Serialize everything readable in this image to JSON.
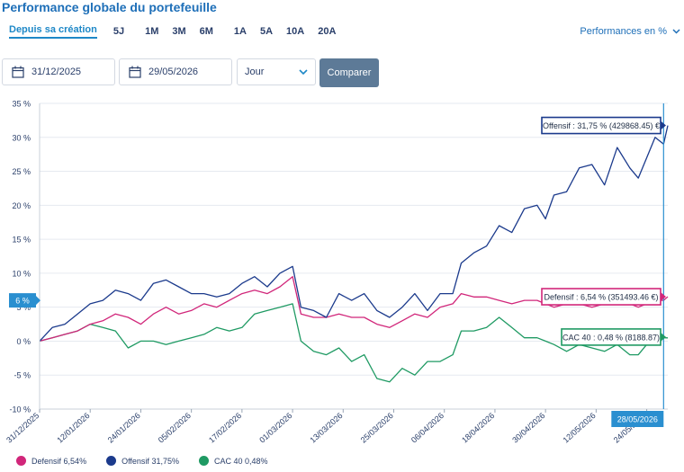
{
  "header": {
    "title": "Performance globale du portefeuille",
    "perf_mode": "Performances en %"
  },
  "periods": [
    "Depuis sa création",
    "5J",
    "1M",
    "3M",
    "6M",
    "1A",
    "5A",
    "10A",
    "20A"
  ],
  "filters": {
    "start_date": "31/12/2025",
    "end_date": "29/05/2026",
    "frequency": "Jour",
    "compare_label": "Comparer"
  },
  "colors": {
    "offensif": "#1b3a8c",
    "defensif": "#d1267a",
    "cac40": "#1f9a63",
    "accent": "#2a8fd0",
    "button": "#5d7a97"
  },
  "chart_data": {
    "type": "line",
    "title": "",
    "xlabel": "",
    "ylabel": "",
    "ylim": [
      -10,
      35
    ],
    "y_ticks": [
      "-10 %",
      "-5 %",
      "0 %",
      "5 %",
      "10 %",
      "15 %",
      "20 %",
      "25 %",
      "30 %",
      "35 %"
    ],
    "x_ticks": [
      "31/12/2025",
      "12/01/2026",
      "24/01/2026",
      "05/02/2026",
      "17/02/2026",
      "01/03/2026",
      "13/03/2026",
      "25/03/2026",
      "06/04/2026",
      "18/04/2026",
      "30/04/2026",
      "12/05/2026",
      "24/05/2026"
    ],
    "x_start": "2025-12-31",
    "x_end": "2026-05-29",
    "grid": true,
    "legend": "bottom-left",
    "y_marker": "6 %",
    "x_marker": "28/05/2026",
    "series": [
      {
        "name": "Offensif",
        "legend_value": "31,75%",
        "callout": "Offensif : 31,75 % (429868.45) €",
        "points": [
          [
            "2025-12-31",
            0
          ],
          [
            "2026-01-03",
            2
          ],
          [
            "2026-01-06",
            2.5
          ],
          [
            "2026-01-09",
            4
          ],
          [
            "2026-01-12",
            5.5
          ],
          [
            "2026-01-15",
            6
          ],
          [
            "2026-01-18",
            7.5
          ],
          [
            "2026-01-21",
            7
          ],
          [
            "2026-01-24",
            6
          ],
          [
            "2026-01-27",
            8.5
          ],
          [
            "2026-01-30",
            9
          ],
          [
            "2026-02-02",
            8
          ],
          [
            "2026-02-05",
            7
          ],
          [
            "2026-02-08",
            7
          ],
          [
            "2026-02-11",
            6.5
          ],
          [
            "2026-02-14",
            7
          ],
          [
            "2026-02-17",
            8.5
          ],
          [
            "2026-02-20",
            9.5
          ],
          [
            "2026-02-23",
            8
          ],
          [
            "2026-02-26",
            10
          ],
          [
            "2026-03-01",
            11
          ],
          [
            "2026-03-03",
            5
          ],
          [
            "2026-03-06",
            4.5
          ],
          [
            "2026-03-09",
            3.5
          ],
          [
            "2026-03-12",
            7
          ],
          [
            "2026-03-15",
            6
          ],
          [
            "2026-03-18",
            7
          ],
          [
            "2026-03-21",
            4.5
          ],
          [
            "2026-03-24",
            3.5
          ],
          [
            "2026-03-27",
            5
          ],
          [
            "2026-03-30",
            7
          ],
          [
            "2026-04-02",
            4.5
          ],
          [
            "2026-04-05",
            7
          ],
          [
            "2026-04-08",
            7
          ],
          [
            "2026-04-10",
            11.5
          ],
          [
            "2026-04-13",
            13
          ],
          [
            "2026-04-16",
            14
          ],
          [
            "2026-04-19",
            17
          ],
          [
            "2026-04-22",
            16
          ],
          [
            "2026-04-25",
            19.5
          ],
          [
            "2026-04-28",
            20
          ],
          [
            "2026-04-30",
            18
          ],
          [
            "2026-05-02",
            21.5
          ],
          [
            "2026-05-05",
            22
          ],
          [
            "2026-05-08",
            25.5
          ],
          [
            "2026-05-11",
            26
          ],
          [
            "2026-05-14",
            23
          ],
          [
            "2026-05-17",
            28.5
          ],
          [
            "2026-05-20",
            25.5
          ],
          [
            "2026-05-22",
            24
          ],
          [
            "2026-05-24",
            27
          ],
          [
            "2026-05-26",
            30
          ],
          [
            "2026-05-28",
            29
          ],
          [
            "2026-05-29",
            31.75
          ]
        ]
      },
      {
        "name": "Defensif",
        "legend_value": "6,54%",
        "callout": "Defensif : 6,54 % (351493.46 €)",
        "points": [
          [
            "2025-12-31",
            0
          ],
          [
            "2026-01-03",
            0.5
          ],
          [
            "2026-01-06",
            1
          ],
          [
            "2026-01-09",
            1.5
          ],
          [
            "2026-01-12",
            2.5
          ],
          [
            "2026-01-15",
            3
          ],
          [
            "2026-01-18",
            4
          ],
          [
            "2026-01-21",
            3.5
          ],
          [
            "2026-01-24",
            2.5
          ],
          [
            "2026-01-27",
            4
          ],
          [
            "2026-01-30",
            5
          ],
          [
            "2026-02-02",
            4
          ],
          [
            "2026-02-05",
            4.5
          ],
          [
            "2026-02-08",
            5.5
          ],
          [
            "2026-02-11",
            5
          ],
          [
            "2026-02-14",
            6
          ],
          [
            "2026-02-17",
            7
          ],
          [
            "2026-02-20",
            7.5
          ],
          [
            "2026-02-23",
            7
          ],
          [
            "2026-02-26",
            8
          ],
          [
            "2026-03-01",
            9.5
          ],
          [
            "2026-03-03",
            4
          ],
          [
            "2026-03-06",
            3.5
          ],
          [
            "2026-03-09",
            3.5
          ],
          [
            "2026-03-12",
            4
          ],
          [
            "2026-03-15",
            3.5
          ],
          [
            "2026-03-18",
            3.5
          ],
          [
            "2026-03-21",
            2.5
          ],
          [
            "2026-03-24",
            2
          ],
          [
            "2026-03-27",
            3
          ],
          [
            "2026-03-30",
            4
          ],
          [
            "2026-04-02",
            3.5
          ],
          [
            "2026-04-05",
            5
          ],
          [
            "2026-04-08",
            5.5
          ],
          [
            "2026-04-10",
            7
          ],
          [
            "2026-04-13",
            6.5
          ],
          [
            "2026-04-16",
            6.5
          ],
          [
            "2026-04-19",
            6
          ],
          [
            "2026-04-22",
            5.5
          ],
          [
            "2026-04-25",
            6
          ],
          [
            "2026-04-28",
            6
          ],
          [
            "2026-04-30",
            5.5
          ],
          [
            "2026-05-02",
            5
          ],
          [
            "2026-05-05",
            5.5
          ],
          [
            "2026-05-08",
            5.5
          ],
          [
            "2026-05-11",
            5
          ],
          [
            "2026-05-14",
            5.5
          ],
          [
            "2026-05-17",
            6
          ],
          [
            "2026-05-20",
            5.5
          ],
          [
            "2026-05-22",
            5
          ],
          [
            "2026-05-24",
            5.5
          ],
          [
            "2026-05-26",
            6
          ],
          [
            "2026-05-28",
            6
          ],
          [
            "2026-05-29",
            6.54
          ]
        ]
      },
      {
        "name": "CAC 40",
        "legend_value": "0,48%",
        "callout": "CAC 40 : 0,48 % (8188.87)",
        "points": [
          [
            "2025-12-31",
            0
          ],
          [
            "2026-01-03",
            0.5
          ],
          [
            "2026-01-06",
            1
          ],
          [
            "2026-01-09",
            1.5
          ],
          [
            "2026-01-12",
            2.5
          ],
          [
            "2026-01-15",
            2
          ],
          [
            "2026-01-18",
            1.5
          ],
          [
            "2026-01-21",
            -1
          ],
          [
            "2026-01-24",
            0
          ],
          [
            "2026-01-27",
            0
          ],
          [
            "2026-01-30",
            -0.5
          ],
          [
            "2026-02-02",
            0
          ],
          [
            "2026-02-05",
            0.5
          ],
          [
            "2026-02-08",
            1
          ],
          [
            "2026-02-11",
            2
          ],
          [
            "2026-02-14",
            1.5
          ],
          [
            "2026-02-17",
            2
          ],
          [
            "2026-02-20",
            4
          ],
          [
            "2026-02-23",
            4.5
          ],
          [
            "2026-02-26",
            5
          ],
          [
            "2026-03-01",
            5.5
          ],
          [
            "2026-03-03",
            0
          ],
          [
            "2026-03-06",
            -1.5
          ],
          [
            "2026-03-09",
            -2
          ],
          [
            "2026-03-12",
            -1
          ],
          [
            "2026-03-15",
            -3
          ],
          [
            "2026-03-18",
            -2
          ],
          [
            "2026-03-21",
            -5.5
          ],
          [
            "2026-03-24",
            -6
          ],
          [
            "2026-03-27",
            -4
          ],
          [
            "2026-03-30",
            -5
          ],
          [
            "2026-04-02",
            -3
          ],
          [
            "2026-04-05",
            -3
          ],
          [
            "2026-04-08",
            -2
          ],
          [
            "2026-04-10",
            1.5
          ],
          [
            "2026-04-13",
            1.5
          ],
          [
            "2026-04-16",
            2
          ],
          [
            "2026-04-19",
            3.5
          ],
          [
            "2026-04-22",
            2
          ],
          [
            "2026-04-25",
            0.5
          ],
          [
            "2026-04-28",
            0.5
          ],
          [
            "2026-04-30",
            0
          ],
          [
            "2026-05-02",
            -0.5
          ],
          [
            "2026-05-05",
            -1.5
          ],
          [
            "2026-05-08",
            -0.5
          ],
          [
            "2026-05-11",
            -1
          ],
          [
            "2026-05-14",
            -1.5
          ],
          [
            "2026-05-17",
            -0.5
          ],
          [
            "2026-05-20",
            -2
          ],
          [
            "2026-05-22",
            -2
          ],
          [
            "2026-05-24",
            -0.5
          ],
          [
            "2026-05-26",
            0
          ],
          [
            "2026-05-28",
            0.5
          ],
          [
            "2026-05-29",
            0.48
          ]
        ]
      }
    ]
  }
}
